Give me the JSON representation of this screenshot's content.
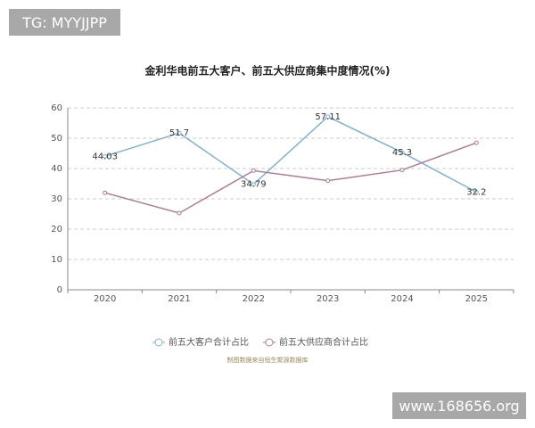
{
  "chart_data": {
    "type": "line",
    "title": "金利华电前五大客户、前五大供应商集中度情况(%)",
    "categories": [
      "2020",
      "2021",
      "2022",
      "2023",
      "2024",
      "2025"
    ],
    "series": [
      {
        "name": "前五大客户合计占比",
        "color": "#7eb3d3",
        "values": [
          44.03,
          51.7,
          34.79,
          57.11,
          45.3,
          32.2
        ],
        "show_labels": true
      },
      {
        "name": "前五大供应商合计占比",
        "color": "#b07a98",
        "values": [
          32,
          25.3,
          39.3,
          36,
          39.5,
          48.5
        ],
        "show_labels": false
      }
    ],
    "ylim": [
      0,
      60
    ],
    "yticks": [
      0,
      10,
      20,
      30,
      40,
      50,
      60
    ],
    "grid": true,
    "legend": "bottom",
    "source": "制图数据来自恒生聚源数据库"
  },
  "watermarks": [
    "TG: MYYJJPP",
    "www.168656.org"
  ]
}
